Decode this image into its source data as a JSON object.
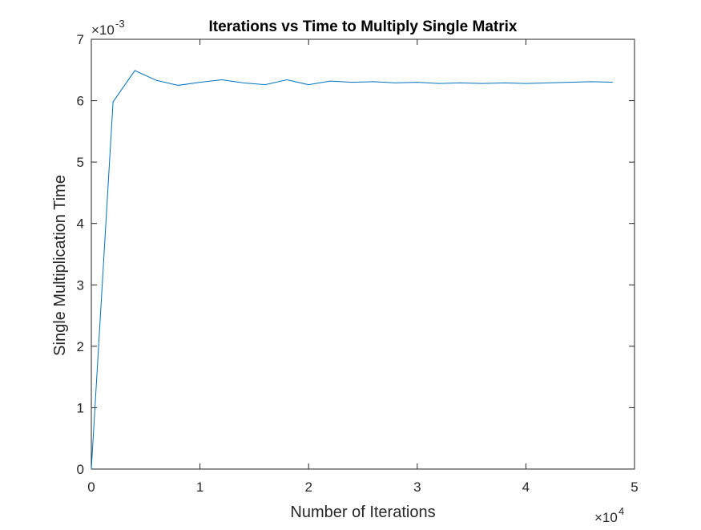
{
  "chart_data": {
    "type": "line",
    "title": "Iterations vs Time to Multiply Single Matrix",
    "xlabel": "Number of Iterations",
    "ylabel": "Single Multiplication Time",
    "xlim": [
      0,
      50000
    ],
    "ylim": [
      0,
      0.007
    ],
    "x_ticks": [
      0,
      10000,
      20000,
      30000,
      40000,
      50000
    ],
    "x_tick_labels": [
      "0",
      "1",
      "2",
      "3",
      "4",
      "5"
    ],
    "y_ticks": [
      0,
      0.001,
      0.002,
      0.003,
      0.004,
      0.005,
      0.006,
      0.007
    ],
    "y_tick_labels": [
      "0",
      "1",
      "2",
      "3",
      "4",
      "5",
      "6",
      "7"
    ],
    "x_exponent": {
      "base": "×10",
      "power": "4"
    },
    "y_exponent": {
      "base": "×10",
      "power": "-3"
    },
    "grid": false,
    "box": true,
    "series": [
      {
        "color": "#0072BD",
        "x": [
          0,
          2000,
          4000,
          6000,
          8000,
          10000,
          12000,
          14000,
          16000,
          18000,
          20000,
          22000,
          24000,
          26000,
          28000,
          30000,
          32000,
          34000,
          36000,
          38000,
          40000,
          42000,
          44000,
          46000,
          48000
        ],
        "y": [
          0,
          0.00598,
          0.00649,
          0.00633,
          0.00625,
          0.0063,
          0.00634,
          0.00629,
          0.00626,
          0.00634,
          0.00626,
          0.00632,
          0.0063,
          0.00631,
          0.00629,
          0.0063,
          0.00628,
          0.00629,
          0.00628,
          0.00629,
          0.00628,
          0.00629,
          0.0063,
          0.00631,
          0.0063
        ]
      }
    ]
  }
}
